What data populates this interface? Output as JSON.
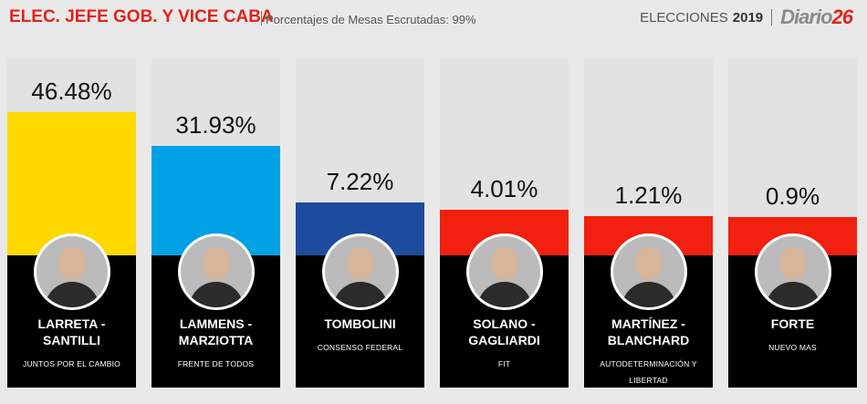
{
  "header": {
    "title": "ELEC. JEFE GOB. Y VICE CABA",
    "subtitle": "Porcentajes de Mesas Escrutadas: 99%",
    "elecciones": "ELECCIONES",
    "year": "2019",
    "logo": "Diario",
    "logo_number": "26"
  },
  "chart_data": {
    "type": "bar",
    "categories": [
      "LARRETA - SANTILLI",
      "LAMMENS - MARZIOTTA",
      "TOMBOLINI",
      "SOLANO - GAGLIARDI",
      "MARTÍNEZ - BLANCHARD",
      "FORTE"
    ],
    "parties": [
      "JUNTOS POR EL CAMBIO",
      "FRENTE DE TODOS",
      "CONSENSO FEDERAL",
      "FIT",
      "AUTODETERMINACIÓN Y LIBERTAD",
      "NUEVO MAS"
    ],
    "values": [
      46.48,
      31.93,
      7.22,
      4.01,
      1.21,
      0.9
    ],
    "value_labels": [
      "46.48%",
      "31.93%",
      "7.22%",
      "4.01%",
      "1.21%",
      "0.9%"
    ],
    "colors": [
      "#ffd800",
      "#00a0e4",
      "#1d4c9e",
      "#f2200e",
      "#f2200e",
      "#f2200e"
    ]
  }
}
